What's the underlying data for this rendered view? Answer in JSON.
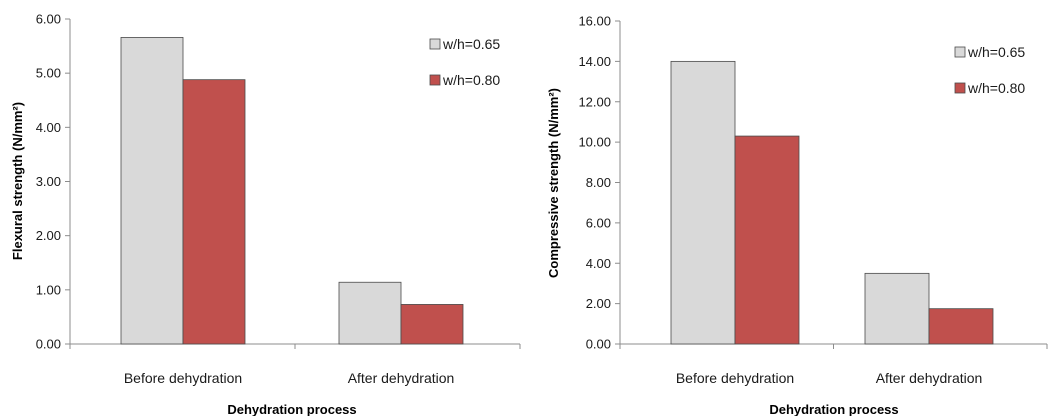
{
  "chart_data": [
    {
      "type": "bar",
      "xlabel": "Dehydration process",
      "ylabel": "Flexural strength (N/mm²)",
      "categories": [
        "Before dehydration",
        "After dehydration"
      ],
      "series": [
        {
          "name": "w/h=0.65",
          "values": [
            5.66,
            1.14
          ],
          "color": "#d9d9d9"
        },
        {
          "name": "w/h=0.80",
          "values": [
            4.88,
            0.73
          ],
          "color": "#c0504d"
        }
      ],
      "ylim": [
        0,
        6
      ],
      "yticks": [
        "0.00",
        "1.00",
        "2.00",
        "3.00",
        "4.00",
        "5.00",
        "6.00"
      ],
      "grid": false,
      "legend": "top-right"
    },
    {
      "type": "bar",
      "xlabel": "Dehydration process",
      "ylabel": "Compressive strength (N/mm²)",
      "categories": [
        "Before dehydration",
        "After dehydration"
      ],
      "series": [
        {
          "name": "w/h=0.65",
          "values": [
            14.0,
            3.5
          ],
          "color": "#d9d9d9"
        },
        {
          "name": "w/h=0.80",
          "values": [
            10.3,
            1.75
          ],
          "color": "#c0504d"
        }
      ],
      "ylim": [
        0,
        16
      ],
      "yticks": [
        "0.00",
        "2.00",
        "4.00",
        "6.00",
        "8.00",
        "10.00",
        "12.00",
        "14.00",
        "16.00"
      ],
      "grid": false,
      "legend": "top-right"
    }
  ]
}
